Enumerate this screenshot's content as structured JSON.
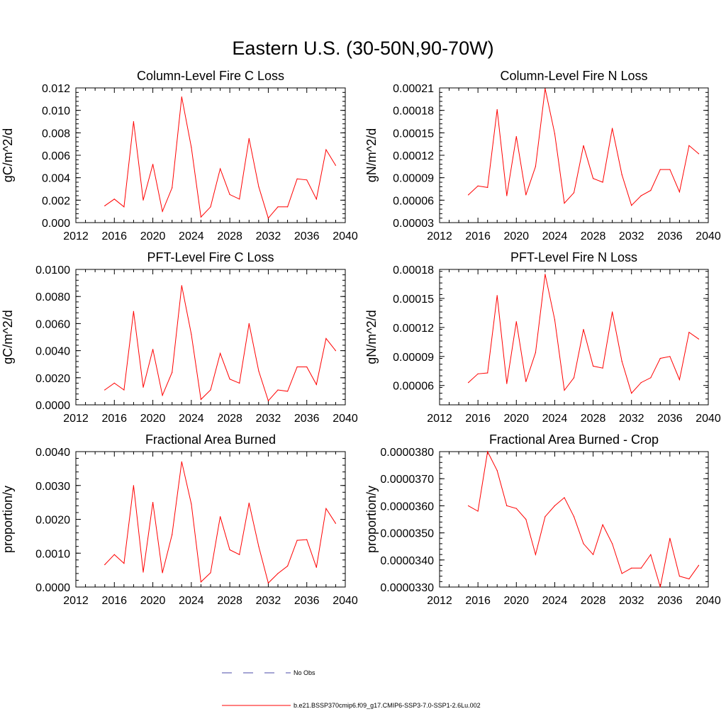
{
  "figure": {
    "title": "Eastern U.S. (30-50N,90-70W)"
  },
  "legend": {
    "obs_label": "No Obs",
    "run_label": "b.e21.BSSP370cmip6.f09_g17.CMIP6-SSP3-7.0-SSP1-2.6Lu.002",
    "colors": {
      "obs": "#4a4aa8",
      "run": "#ff0000"
    }
  },
  "chart_data": [
    {
      "type": "line",
      "title": "Column-Level Fire C Loss",
      "ylabel": "gC/m^2/d",
      "xlim": [
        2012,
        2040
      ],
      "xticks": [
        "2012",
        "2016",
        "2020",
        "2024",
        "2028",
        "2032",
        "2036",
        "2040"
      ],
      "ylim": [
        0,
        0.012
      ],
      "yticks": [
        "0.000",
        "0.002",
        "0.004",
        "0.006",
        "0.008",
        "0.010",
        "0.012"
      ],
      "x": [
        2015,
        2016,
        2017,
        2018,
        2019,
        2020,
        2021,
        2022,
        2023,
        2024,
        2025,
        2026,
        2027,
        2028,
        2029,
        2030,
        2031,
        2032,
        2033,
        2034,
        2035,
        2036,
        2037,
        2038,
        2039
      ],
      "series": [
        {
          "color": "#ff0000",
          "values": [
            0.0015,
            0.0021,
            0.0014,
            0.009,
            0.002,
            0.0052,
            0.001,
            0.0031,
            0.0112,
            0.0067,
            0.0005,
            0.0014,
            0.0048,
            0.0025,
            0.0021,
            0.0075,
            0.0032,
            0.0004,
            0.0014,
            0.0014,
            0.0039,
            0.0038,
            0.0021,
            0.0065,
            0.0051
          ]
        }
      ]
    },
    {
      "type": "line",
      "title": "Column-Level Fire N Loss",
      "ylabel": "gN/m^2/d",
      "xlim": [
        2012,
        2040
      ],
      "xticks": [
        "2012",
        "2016",
        "2020",
        "2024",
        "2028",
        "2032",
        "2036",
        "2040"
      ],
      "ylim": [
        3e-05,
        0.00021
      ],
      "yticks": [
        "0.00003",
        "0.00006",
        "0.00009",
        "0.00012",
        "0.00015",
        "0.00018",
        "0.00021"
      ],
      "x": [
        2015,
        2016,
        2017,
        2018,
        2019,
        2020,
        2021,
        2022,
        2023,
        2024,
        2025,
        2026,
        2027,
        2028,
        2029,
        2030,
        2031,
        2032,
        2033,
        2034,
        2035,
        2036,
        2037,
        2038,
        2039
      ],
      "series": [
        {
          "color": "#ff0000",
          "values": [
            6.7e-05,
            7.9e-05,
            7.7e-05,
            0.000181,
            6.6e-05,
            0.000145,
            6.7e-05,
            0.000105,
            0.000209,
            0.000149,
            5.6e-05,
            7e-05,
            0.000133,
            8.9e-05,
            8.4e-05,
            0.000156,
            9.4e-05,
            5.3e-05,
            6.6e-05,
            7.3e-05,
            0.000101,
            0.000101,
            7.1e-05,
            0.000133,
            0.000122
          ]
        }
      ]
    },
    {
      "type": "line",
      "title": "PFT-Level Fire C Loss",
      "ylabel": "gC/m^2/d",
      "xlim": [
        2012,
        2040
      ],
      "xticks": [
        "2012",
        "2016",
        "2020",
        "2024",
        "2028",
        "2032",
        "2036",
        "2040"
      ],
      "ylim": [
        0,
        0.01
      ],
      "yticks": [
        "0.0000",
        "0.0020",
        "0.0040",
        "0.0060",
        "0.0080",
        "0.0100"
      ],
      "x": [
        2015,
        2016,
        2017,
        2018,
        2019,
        2020,
        2021,
        2022,
        2023,
        2024,
        2025,
        2026,
        2027,
        2028,
        2029,
        2030,
        2031,
        2032,
        2033,
        2034,
        2035,
        2036,
        2037,
        2038,
        2039
      ],
      "series": [
        {
          "color": "#ff0000",
          "values": [
            0.0011,
            0.0016,
            0.0011,
            0.0069,
            0.0013,
            0.0041,
            0.0007,
            0.0024,
            0.0088,
            0.0052,
            0.0004,
            0.0011,
            0.0038,
            0.0019,
            0.0016,
            0.006,
            0.0025,
            0.0003,
            0.0011,
            0.001,
            0.0028,
            0.0028,
            0.0015,
            0.0049,
            0.004
          ]
        }
      ]
    },
    {
      "type": "line",
      "title": "PFT-Level Fire N Loss",
      "ylabel": "gN/m^2/d",
      "xlim": [
        2012,
        2040
      ],
      "xticks": [
        "2012",
        "2016",
        "2020",
        "2024",
        "2028",
        "2032",
        "2036",
        "2040"
      ],
      "ylim": [
        4e-05,
        0.00018
      ],
      "yticks": [
        "0.00006",
        "0.00009",
        "0.00012",
        "0.00015",
        "0.00018"
      ],
      "x": [
        2015,
        2016,
        2017,
        2018,
        2019,
        2020,
        2021,
        2022,
        2023,
        2024,
        2025,
        2026,
        2027,
        2028,
        2029,
        2030,
        2031,
        2032,
        2033,
        2034,
        2035,
        2036,
        2037,
        2038,
        2039
      ],
      "series": [
        {
          "color": "#ff0000",
          "values": [
            6.3e-05,
            7.2e-05,
            7.3e-05,
            0.000153,
            6.2e-05,
            0.000126,
            6.4e-05,
            9.4e-05,
            0.000175,
            0.000128,
            5.5e-05,
            6.8e-05,
            0.000118,
            8e-05,
            7.8e-05,
            0.000136,
            8.5e-05,
            5.2e-05,
            6.3e-05,
            6.8e-05,
            8.8e-05,
            9e-05,
            6.6e-05,
            0.000115,
            0.000108
          ]
        }
      ]
    },
    {
      "type": "line",
      "title": "Fractional Area Burned",
      "ylabel": "proportion/y",
      "xlim": [
        2012,
        2040
      ],
      "xticks": [
        "2012",
        "2016",
        "2020",
        "2024",
        "2028",
        "2032",
        "2036",
        "2040"
      ],
      "ylim": [
        0,
        0.004
      ],
      "yticks": [
        "0.0000",
        "0.0010",
        "0.0020",
        "0.0030",
        "0.0040"
      ],
      "x": [
        2015,
        2016,
        2017,
        2018,
        2019,
        2020,
        2021,
        2022,
        2023,
        2024,
        2025,
        2026,
        2027,
        2028,
        2029,
        2030,
        2031,
        2032,
        2033,
        2034,
        2035,
        2036,
        2037,
        2038,
        2039
      ],
      "series": [
        {
          "color": "#ff0000",
          "values": [
            0.00066,
            0.00096,
            0.0007,
            0.003,
            0.00044,
            0.0025,
            0.00042,
            0.00155,
            0.0037,
            0.00245,
            0.00015,
            0.00042,
            0.00208,
            0.0011,
            0.00096,
            0.00248,
            0.0012,
            0.00012,
            0.0004,
            0.00062,
            0.00138,
            0.0014,
            0.00058,
            0.00232,
            0.00188
          ]
        }
      ]
    },
    {
      "type": "line",
      "title": "Fractional Area Burned - Crop",
      "ylabel": "proportion/y",
      "xlim": [
        2012,
        2040
      ],
      "xticks": [
        "2012",
        "2016",
        "2020",
        "2024",
        "2028",
        "2032",
        "2036",
        "2040"
      ],
      "ylim": [
        3.3e-05,
        3.8e-05
      ],
      "yticks": [
        "0.0000330",
        "0.0000340",
        "0.0000350",
        "0.0000360",
        "0.0000370",
        "0.0000380"
      ],
      "x": [
        2015,
        2016,
        2017,
        2018,
        2019,
        2020,
        2021,
        2022,
        2023,
        2024,
        2025,
        2026,
        2027,
        2028,
        2029,
        2030,
        2031,
        2032,
        2033,
        2034,
        2035,
        2036,
        2037,
        2038,
        2039
      ],
      "series": [
        {
          "color": "#ff0000",
          "values": [
            3.6e-05,
            3.58e-05,
            3.8e-05,
            3.73e-05,
            3.6e-05,
            3.59e-05,
            3.55e-05,
            3.42e-05,
            3.56e-05,
            3.6e-05,
            3.63e-05,
            3.56e-05,
            3.46e-05,
            3.42e-05,
            3.53e-05,
            3.46e-05,
            3.35e-05,
            3.37e-05,
            3.37e-05,
            3.42e-05,
            3.3e-05,
            3.48e-05,
            3.34e-05,
            3.33e-05,
            3.38e-05
          ]
        }
      ]
    }
  ]
}
